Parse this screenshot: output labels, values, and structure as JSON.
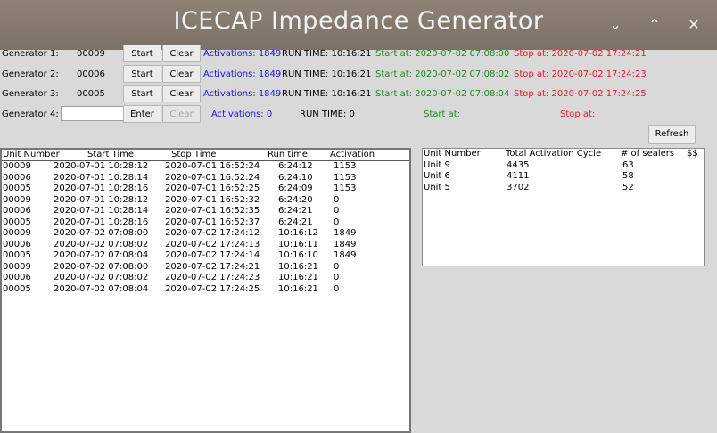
{
  "window": {
    "title": "ICECAP Impedance Generator",
    "controls": {
      "minimize": "⌄",
      "maximize": "⌃",
      "close": "✕"
    }
  },
  "generators": [
    {
      "label": "Generator 1:",
      "unit": "00009",
      "start": "Start",
      "clear": "Clear",
      "activations": "Activations: 1849",
      "run_time": "RUN TIME: 10:16:21",
      "start_at": "Start at: 2020-07-02 07:08:00",
      "stop_at": "Stop at: 2020-07-02 17:24:21"
    },
    {
      "label": "Generator 2:",
      "unit": "00006",
      "start": "Start",
      "clear": "Clear",
      "activations": "Activations: 1849",
      "run_time": "RUN TIME: 10:16:21",
      "start_at": "Start at: 2020-07-02 07:08:02",
      "stop_at": "Stop at: 2020-07-02 17:24:23"
    },
    {
      "label": "Generator 3:",
      "unit": "00005",
      "start": "Start",
      "clear": "Clear",
      "activations": "Activations: 1849",
      "run_time": "RUN TIME: 10:16:21",
      "start_at": "Start at: 2020-07-02 07:08:04",
      "stop_at": "Stop at: 2020-07-02 17:24:25"
    },
    {
      "label": "Generator 4:",
      "unit_input": "",
      "start": "Enter",
      "clear": "Clear",
      "activations": "Activations: 0",
      "run_time": "RUN TIME: 0",
      "start_at": "Start at:",
      "stop_at": "Stop at:"
    }
  ],
  "refresh_label": "Refresh",
  "log": {
    "headers": [
      "Unit Number",
      "Start Time",
      "Stop Time",
      "Run time",
      "Activation"
    ],
    "rows": [
      [
        "00009",
        "2020-07-01 10:28:12",
        "2020-07-01 16:52:24",
        "6:24:12",
        "1153"
      ],
      [
        "00006",
        "2020-07-01 10:28:14",
        "2020-07-01 16:52:24",
        "6:24:10",
        "1153"
      ],
      [
        "00005",
        "2020-07-01 10:28:16",
        "2020-07-01 16:52:25",
        "6:24:09",
        "1153"
      ],
      [
        "00009",
        "2020-07-01 10:28:12",
        "2020-07-01 16:52:32",
        "6:24:20",
        "0"
      ],
      [
        "00006",
        "2020-07-01 10:28:14",
        "2020-07-01 16:52:35",
        "6:24:21",
        "0"
      ],
      [
        "00005",
        "2020-07-01 10:28:16",
        "2020-07-01 16:52:37",
        "6:24:21",
        "0"
      ],
      [
        "00009",
        "2020-07-02 07:08:00",
        "2020-07-02 17:24:12",
        "10:16:12",
        "1849"
      ],
      [
        "00006",
        "2020-07-02 07:08:02",
        "2020-07-02 17:24:13",
        "10:16:11",
        "1849"
      ],
      [
        "00005",
        "2020-07-02 07:08:04",
        "2020-07-02 17:24:14",
        "10:16:10",
        "1849"
      ],
      [
        "00009",
        "2020-07-02 07:08:00",
        "2020-07-02 17:24:21",
        "10:16:21",
        "0"
      ],
      [
        "00006",
        "2020-07-02 07:08:02",
        "2020-07-02 17:24:23",
        "10:16:21",
        "0"
      ],
      [
        "00005",
        "2020-07-02 07:08:04",
        "2020-07-02 17:24:25",
        "10:16:21",
        "0"
      ]
    ]
  },
  "summary": {
    "headers": [
      "Unit Number",
      "Total Activation Cycle",
      "# of sealers",
      "$$"
    ],
    "rows": [
      [
        "Unit  9",
        "4435",
        "63"
      ],
      [
        "Unit  6",
        "4111",
        "58"
      ],
      [
        "Unit  5",
        "3702",
        "52"
      ]
    ]
  },
  "colors": {
    "activations": "#1515e0",
    "start_at": "#1a8a1a",
    "stop_at": "#e02020",
    "titlebar": "#857a70"
  }
}
